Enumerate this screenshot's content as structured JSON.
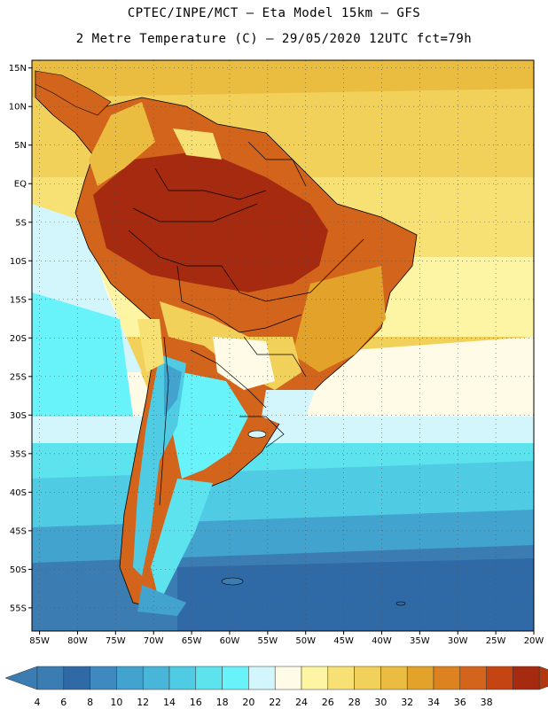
{
  "header": {
    "line1": "CPTEC/INPE/MCT –  Eta Model 15km – GFS",
    "line2": "2 Metre Temperature (C) – 29/05/2020 12UTC fct=79h"
  },
  "map": {
    "lat_labels": [
      "15N",
      "10N",
      "5N",
      "EQ",
      "5S",
      "10S",
      "15S",
      "20S",
      "25S",
      "30S",
      "35S",
      "40S",
      "45S",
      "50S",
      "55S"
    ],
    "lon_labels": [
      "85W",
      "80W",
      "75W",
      "70W",
      "65W",
      "60W",
      "55W",
      "50W",
      "45W",
      "40W",
      "35W",
      "30W",
      "25W",
      "20W"
    ],
    "lat_range": [
      16,
      -58
    ],
    "lon_range": [
      -86,
      -20
    ]
  },
  "colorbar": {
    "labels": [
      "4",
      "6",
      "8",
      "10",
      "12",
      "14",
      "16",
      "18",
      "20",
      "22",
      "24",
      "26",
      "28",
      "30",
      "32",
      "34",
      "36",
      "38"
    ],
    "colors": [
      "#3b7cb3",
      "#2f69a6",
      "#3e89c0",
      "#42a3cf",
      "#47b6d9",
      "#4fcbe3",
      "#5ce3ee",
      "#68f3fb",
      "#d2f6fb",
      "#fffbe6",
      "#fdf5a3",
      "#f7e174",
      "#f2d15b",
      "#eabc40",
      "#e3a22a",
      "#dc8320",
      "#d2641b",
      "#c44412",
      "#a52a0f"
    ],
    "left_arrow_color": "#3b7cb3",
    "right_arrow_color": "#b2380f"
  }
}
